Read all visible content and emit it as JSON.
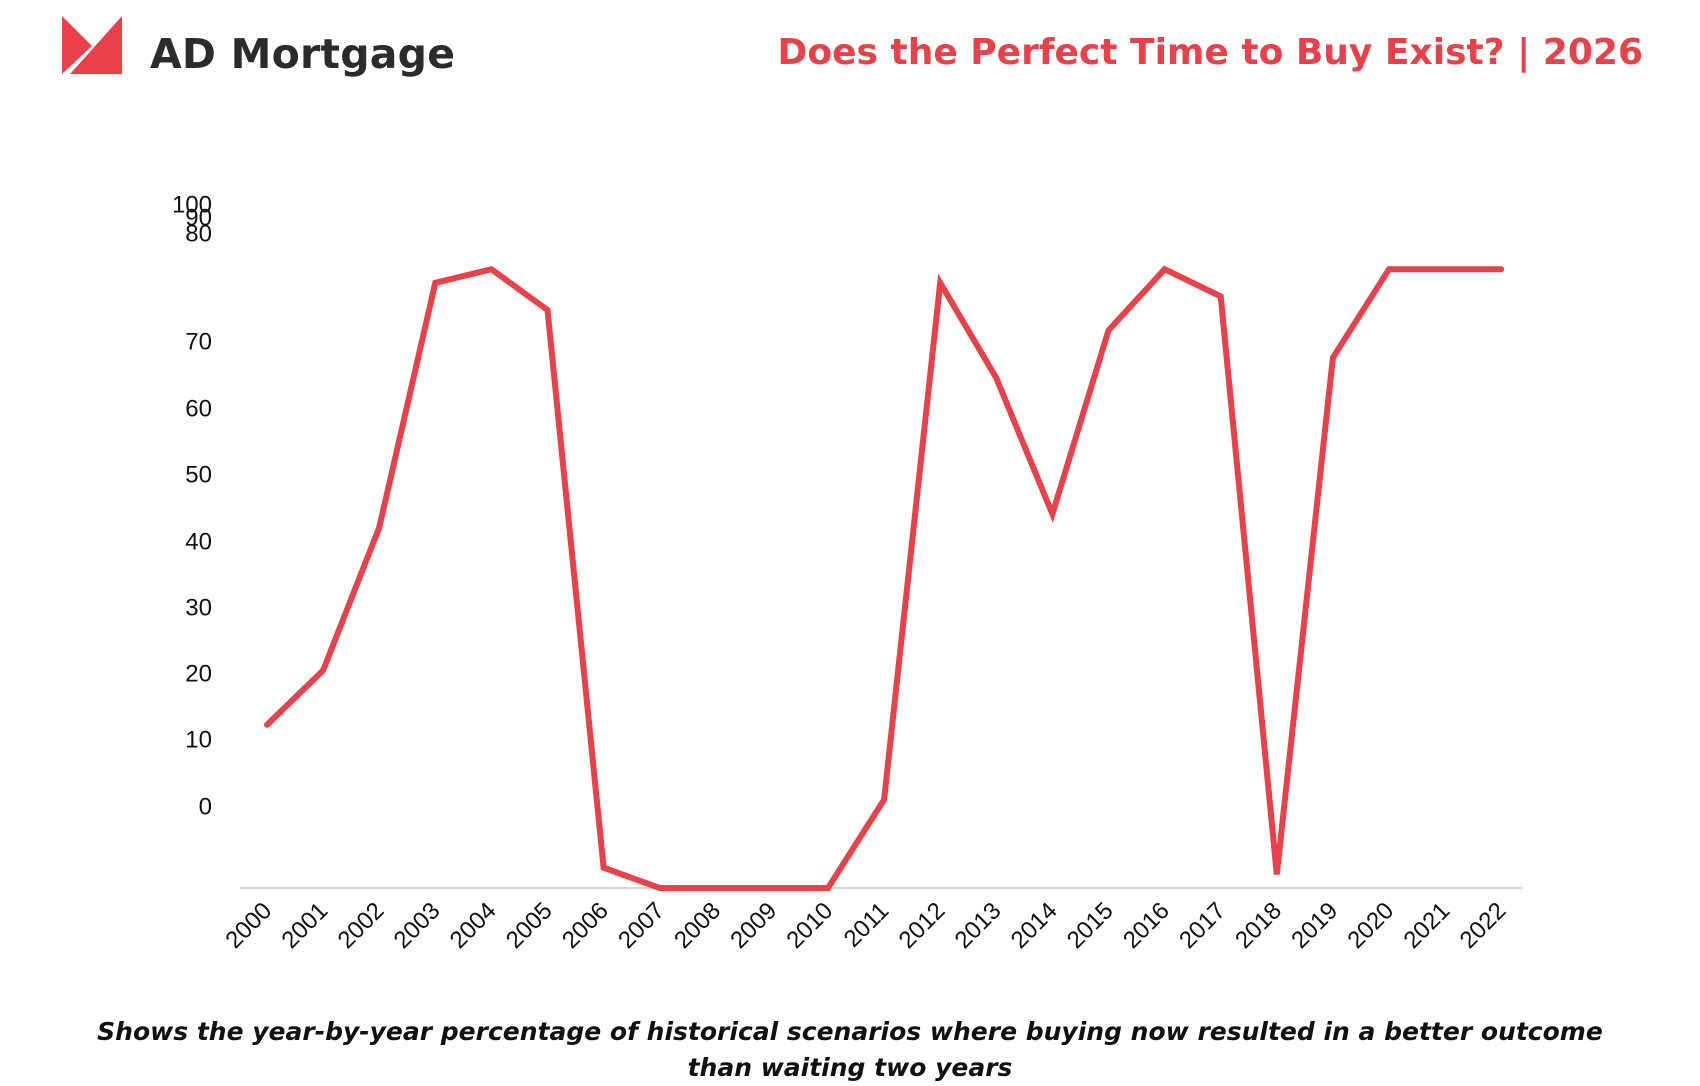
{
  "brand": {
    "name": "AD Mortgage",
    "logo_icon": "ad-mortgage-logo-icon",
    "accent_color": "#e8414a",
    "text_color": "#2b2b2b"
  },
  "headline": "Does the Perfect Time to Buy Exist? | 2026",
  "caption": "Shows the year-by-year percentage of historical scenarios where buying now resulted in a better outcome than waiting two years",
  "chart_data": {
    "type": "line",
    "title": "",
    "xlabel": "",
    "ylabel": "",
    "grid": false,
    "legend": "none",
    "line_color": "#e8414a",
    "y_ticks": [
      0,
      10,
      20,
      30,
      40,
      50,
      60,
      70,
      80,
      90,
      100
    ],
    "categories": [
      "2000",
      "2001",
      "2002",
      "2003",
      "2004",
      "2005",
      "2006",
      "2007",
      "2008",
      "2009",
      "2010",
      "2011",
      "2012",
      "2013",
      "2014",
      "2015",
      "2016",
      "2017",
      "2018",
      "2019",
      "2020",
      "2021",
      "2022"
    ],
    "series": [
      {
        "values": [
          24,
          32,
          53,
          89,
          91,
          85,
          3,
          0,
          0,
          0,
          0,
          13,
          89,
          75,
          55,
          82,
          91,
          87,
          2,
          78,
          91,
          91,
          91
        ]
      }
    ]
  }
}
